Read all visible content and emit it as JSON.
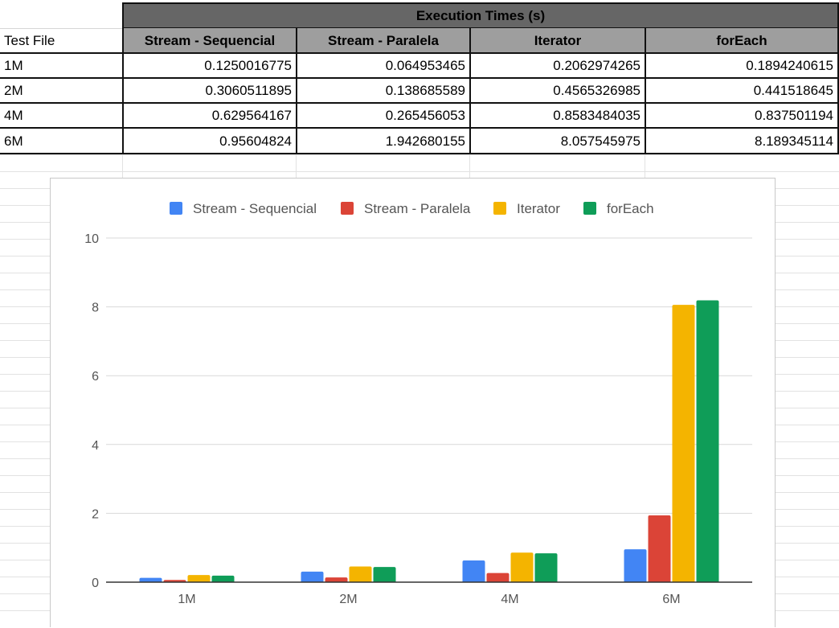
{
  "table": {
    "banner": "Execution Times (s)",
    "row_header_label": "Test File",
    "columns": [
      "Stream - Sequencial",
      "Stream - Paralela",
      "Iterator",
      "forEach"
    ],
    "rows": [
      {
        "label": "1M",
        "cells": [
          "0.1250016775",
          "0.064953465",
          "0.2062974265",
          "0.1894240615"
        ]
      },
      {
        "label": "2M",
        "cells": [
          "0.3060511895",
          "0.138685589",
          "0.4565326985",
          "0.441518645"
        ]
      },
      {
        "label": "4M",
        "cells": [
          "0.629564167",
          "0.265456053",
          "0.8583484035",
          "0.837501194"
        ]
      },
      {
        "label": "6M",
        "cells": [
          "0.95604824",
          "1.942680155",
          "8.057545975",
          "8.189345114"
        ]
      }
    ]
  },
  "chart_data": {
    "type": "bar",
    "title": "",
    "xlabel": "",
    "ylabel": "",
    "categories": [
      "1M",
      "2M",
      "4M",
      "6M"
    ],
    "ylim": [
      0,
      10
    ],
    "yticks": [
      "0",
      "2",
      "4",
      "6",
      "8",
      "10"
    ],
    "grid": true,
    "legend_position": "top",
    "series": [
      {
        "name": "Stream - Sequencial",
        "color": "#4285f4",
        "values": [
          0.1250016775,
          0.3060511895,
          0.629564167,
          0.95604824
        ]
      },
      {
        "name": "Stream - Paralela",
        "color": "#db4437",
        "values": [
          0.064953465,
          0.138685589,
          0.265456053,
          1.942680155
        ]
      },
      {
        "name": "Iterator",
        "color": "#f4b400",
        "values": [
          0.2062974265,
          0.4565326985,
          0.8583484035,
          8.057545975
        ]
      },
      {
        "name": "forEach",
        "color": "#0f9d58",
        "values": [
          0.1894240615,
          0.441518645,
          0.837501194,
          8.189345114
        ]
      }
    ]
  }
}
